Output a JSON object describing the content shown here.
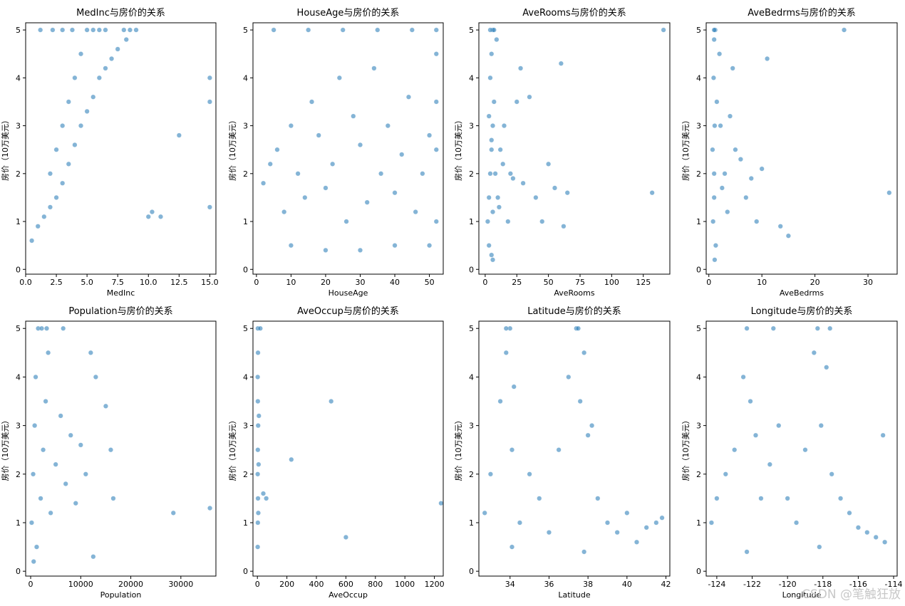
{
  "watermark": "CSDN @笔触狂放",
  "chart_data": [
    {
      "type": "scatter",
      "title": "MedInc与房价的关系",
      "xlabel": "MedInc",
      "ylabel": "房价（10万美元）",
      "xlim": [
        0,
        15.5
      ],
      "ylim": [
        -0.1,
        5.15
      ],
      "xticks": [
        0.0,
        2.5,
        5.0,
        7.5,
        10.0,
        12.5,
        15.0
      ],
      "xtick_labels": [
        "0.0",
        "2.5",
        "5.0",
        "7.5",
        "10.0",
        "12.5",
        "15.0"
      ],
      "yticks": [
        0,
        1,
        2,
        3,
        4,
        5
      ],
      "x": [
        0.5,
        1.0,
        1.5,
        2.0,
        2.0,
        2.5,
        2.5,
        3.0,
        3.0,
        3.5,
        3.5,
        4.0,
        4.0,
        4.5,
        4.5,
        5.0,
        5.0,
        5.5,
        5.5,
        6.0,
        6.0,
        6.5,
        7.0,
        7.5,
        8.0,
        8.5,
        9.0,
        10.0,
        10.3,
        11.0,
        12.5,
        15.0,
        15.0,
        15.0,
        3.0,
        1.2,
        2.2,
        3.8,
        6.5,
        8.2
      ],
      "y": [
        0.6,
        0.9,
        1.1,
        1.3,
        2.0,
        1.5,
        2.5,
        1.8,
        3.0,
        2.2,
        3.5,
        2.6,
        4.0,
        3.0,
        4.5,
        3.3,
        5.0,
        3.6,
        5.0,
        4.0,
        5.0,
        4.2,
        4.4,
        4.6,
        5.0,
        5.0,
        5.0,
        1.1,
        1.2,
        1.1,
        2.8,
        4.0,
        3.5,
        1.3,
        5.0,
        5.0,
        5.0,
        5.0,
        5.0,
        4.8
      ]
    },
    {
      "type": "scatter",
      "title": "HouseAge与房价的关系",
      "xlabel": "HouseAge",
      "ylabel": "房价（10万美元）",
      "xlim": [
        -1,
        54
      ],
      "ylim": [
        -0.1,
        5.15
      ],
      "xticks": [
        0,
        10,
        20,
        30,
        40,
        50
      ],
      "xtick_labels": [
        "0",
        "10",
        "20",
        "30",
        "40",
        "50"
      ],
      "yticks": [
        0,
        1,
        2,
        3,
        4,
        5
      ],
      "x": [
        2,
        4,
        6,
        8,
        10,
        12,
        14,
        16,
        18,
        20,
        22,
        24,
        26,
        28,
        30,
        32,
        34,
        36,
        38,
        40,
        42,
        44,
        46,
        48,
        50,
        52,
        52,
        52,
        52,
        52,
        5,
        15,
        25,
        35,
        45,
        10,
        20,
        30,
        40,
        50
      ],
      "y": [
        1.8,
        2.2,
        2.5,
        1.2,
        3.0,
        2.0,
        1.5,
        3.5,
        2.8,
        1.7,
        2.2,
        4.0,
        1.0,
        3.2,
        2.6,
        1.4,
        4.2,
        2.0,
        3.0,
        1.6,
        2.4,
        3.6,
        1.2,
        2.0,
        2.8,
        5.0,
        1.0,
        2.5,
        3.5,
        4.5,
        5.0,
        5.0,
        5.0,
        5.0,
        5.0,
        0.5,
        0.4,
        0.4,
        0.5,
        0.5
      ]
    },
    {
      "type": "scatter",
      "title": "AveRooms与房价的关系",
      "xlabel": "AveRooms",
      "ylabel": "房价（10万美元）",
      "xlim": [
        -5,
        146
      ],
      "ylim": [
        -0.1,
        5.15
      ],
      "xticks": [
        0,
        25,
        50,
        75,
        100,
        125
      ],
      "xtick_labels": [
        "0",
        "25",
        "50",
        "75",
        "100",
        "125"
      ],
      "yticks": [
        0,
        1,
        2,
        3,
        4,
        5
      ],
      "x": [
        2,
        3,
        4,
        5,
        6,
        7,
        4,
        5,
        6,
        3,
        8,
        10,
        12,
        15,
        18,
        20,
        25,
        28,
        30,
        35,
        40,
        45,
        50,
        55,
        60,
        62,
        65,
        132,
        141,
        5,
        6,
        4,
        7,
        9,
        11,
        14,
        22,
        3,
        5,
        6
      ],
      "y": [
        1.0,
        1.5,
        2.0,
        2.5,
        3.0,
        3.5,
        4.0,
        4.5,
        5.0,
        0.5,
        2.0,
        1.5,
        2.5,
        3.0,
        1.0,
        2.0,
        3.5,
        4.2,
        1.8,
        3.6,
        1.5,
        1.0,
        2.2,
        1.7,
        4.3,
        0.9,
        1.6,
        1.6,
        5.0,
        0.3,
        0.2,
        5.0,
        5.0,
        4.8,
        1.3,
        2.2,
        1.9,
        3.2,
        2.7,
        1.2
      ]
    },
    {
      "type": "scatter",
      "title": "AveBedrms与房价的关系",
      "xlabel": "AveBedrms",
      "ylabel": "房价（10万美元）",
      "xlim": [
        -0.5,
        35.5
      ],
      "ylim": [
        -0.1,
        5.15
      ],
      "xticks": [
        0,
        10,
        20,
        30
      ],
      "xtick_labels": [
        "0",
        "10",
        "20",
        "30"
      ],
      "yticks": [
        0,
        1,
        2,
        3,
        4,
        5
      ],
      "x": [
        0.8,
        1.0,
        1.1,
        0.9,
        1.2,
        1.3,
        1.0,
        0.7,
        1.5,
        2.0,
        2.5,
        3.0,
        3.5,
        4.0,
        5.0,
        6.0,
        7.0,
        8.0,
        9.0,
        10.0,
        11.0,
        13.5,
        15.0,
        25.5,
        34.0,
        1.0,
        1.1,
        1.0,
        2.2,
        4.5
      ],
      "y": [
        1.0,
        2.0,
        3.0,
        4.0,
        5.0,
        0.5,
        1.5,
        2.5,
        3.5,
        4.5,
        1.7,
        2.0,
        1.2,
        3.2,
        2.5,
        2.3,
        1.5,
        1.9,
        1.0,
        2.1,
        4.4,
        0.9,
        0.7,
        5.0,
        1.6,
        4.8,
        0.2,
        5.0,
        3.0,
        4.2
      ]
    },
    {
      "type": "scatter",
      "title": "Population与房价的关系",
      "xlabel": "Population",
      "ylabel": "房价（10万美元）",
      "xlim": [
        -1000,
        37000
      ],
      "ylim": [
        -0.1,
        5.15
      ],
      "xticks": [
        0,
        10000,
        20000,
        30000
      ],
      "xtick_labels": [
        "0",
        "10000",
        "20000",
        "30000"
      ],
      "yticks": [
        0,
        1,
        2,
        3,
        4,
        5
      ],
      "x": [
        200,
        500,
        800,
        1000,
        1500,
        2000,
        2500,
        3000,
        3500,
        4000,
        5000,
        6000,
        7000,
        8000,
        9000,
        10000,
        11000,
        12000,
        12500,
        13000,
        15000,
        16000,
        16500,
        28500,
        35800,
        600,
        1200,
        2200,
        3200,
        6500
      ],
      "y": [
        1.0,
        2.0,
        3.0,
        4.0,
        5.0,
        1.5,
        2.5,
        3.5,
        4.5,
        1.2,
        2.2,
        3.2,
        1.8,
        2.8,
        1.4,
        2.6,
        2.0,
        4.5,
        0.3,
        4.0,
        3.4,
        2.5,
        1.5,
        1.2,
        1.3,
        0.2,
        0.5,
        5.0,
        5.0,
        5.0
      ]
    },
    {
      "type": "scatter",
      "title": "AveOccup与房价的关系",
      "xlabel": "AveOccup",
      "ylabel": "房价（10万美元）",
      "xlim": [
        -30,
        1260
      ],
      "ylim": [
        -0.1,
        5.15
      ],
      "xticks": [
        0,
        200,
        400,
        600,
        800,
        1000,
        1200
      ],
      "xtick_labels": [
        "0",
        "200",
        "400",
        "600",
        "800",
        "1000",
        "1200"
      ],
      "yticks": [
        0,
        1,
        2,
        3,
        4,
        5
      ],
      "x": [
        2,
        3,
        4,
        2,
        3,
        5,
        3,
        2,
        4,
        3,
        6,
        8,
        10,
        20,
        40,
        60,
        230,
        500,
        600,
        1245
      ],
      "y": [
        0.5,
        1.0,
        1.5,
        2.0,
        2.5,
        3.0,
        3.5,
        4.0,
        4.5,
        5.0,
        1.2,
        2.2,
        3.2,
        5.0,
        1.6,
        1.5,
        2.3,
        3.5,
        0.7,
        1.4
      ]
    },
    {
      "type": "scatter",
      "title": "Latitude与房价的关系",
      "xlabel": "Latitude",
      "ylabel": "房价（10万美元）",
      "xlim": [
        32.4,
        42.2
      ],
      "ylim": [
        -0.1,
        5.15
      ],
      "xticks": [
        34,
        36,
        38,
        40,
        42
      ],
      "xtick_labels": [
        "34",
        "36",
        "38",
        "40",
        "42"
      ],
      "yticks": [
        0,
        1,
        2,
        3,
        4,
        5
      ],
      "x": [
        32.7,
        33.0,
        33.5,
        33.8,
        34.0,
        34.1,
        34.2,
        34.5,
        35.0,
        35.5,
        36.0,
        36.5,
        37.0,
        37.4,
        37.6,
        37.8,
        38.0,
        38.5,
        39.0,
        39.5,
        40.0,
        40.5,
        41.0,
        41.5,
        41.8,
        33.8,
        34.1,
        37.5,
        37.8,
        38.2
      ],
      "y": [
        1.2,
        2.0,
        3.5,
        4.5,
        5.0,
        2.5,
        3.8,
        1.0,
        2.0,
        1.5,
        0.8,
        2.5,
        4.0,
        5.0,
        3.5,
        4.5,
        2.8,
        1.5,
        1.0,
        0.8,
        1.2,
        0.6,
        0.9,
        1.0,
        1.1,
        5.0,
        0.5,
        5.0,
        0.4,
        3.0
      ]
    },
    {
      "type": "scatter",
      "title": "Longitude与房价的关系",
      "xlabel": "Longitude",
      "ylabel": "房价（10万美元）",
      "xlim": [
        -124.6,
        -113.8
      ],
      "ylim": [
        -0.1,
        5.15
      ],
      "xticks": [
        -124,
        -122,
        -120,
        -118,
        -116,
        -114
      ],
      "xtick_labels": [
        "-124",
        "-122",
        "-120",
        "-118",
        "-116",
        "-114"
      ],
      "yticks": [
        0,
        1,
        2,
        3,
        4,
        5
      ],
      "x": [
        -124.3,
        -124.0,
        -123.5,
        -123.0,
        -122.5,
        -122.3,
        -122.1,
        -121.8,
        -121.5,
        -121.0,
        -120.5,
        -120.0,
        -119.5,
        -119.0,
        -118.5,
        -118.3,
        -118.1,
        -117.8,
        -117.5,
        -117.0,
        -116.5,
        -116.0,
        -115.5,
        -115.0,
        -114.5,
        -114.6,
        -122.3,
        -118.2,
        -117.6,
        -120.8
      ],
      "y": [
        1.0,
        1.5,
        2.0,
        2.5,
        4.0,
        5.0,
        3.5,
        2.8,
        1.5,
        2.2,
        3.0,
        1.5,
        1.0,
        2.5,
        4.5,
        5.0,
        3.0,
        4.2,
        2.0,
        1.5,
        1.2,
        0.9,
        0.8,
        0.7,
        0.6,
        2.8,
        0.4,
        0.5,
        5.0,
        5.0
      ]
    }
  ]
}
